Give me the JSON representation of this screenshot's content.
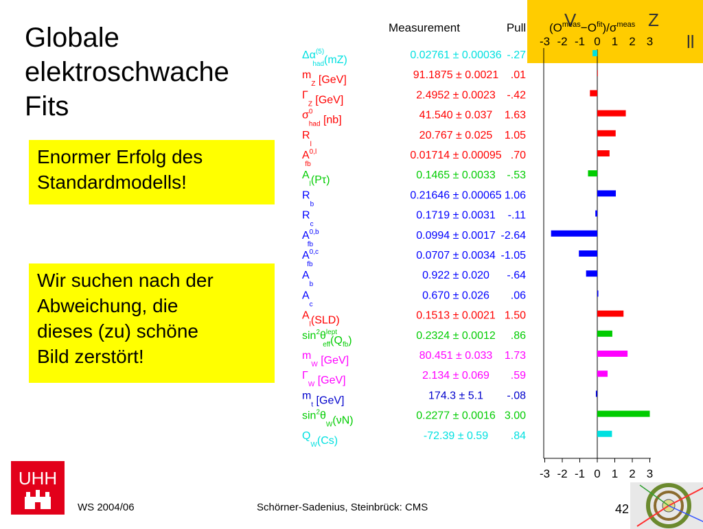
{
  "slide": {
    "title_lines": [
      "Globale",
      "elektroschwache",
      "Fits"
    ],
    "note1_lines": [
      "Enormer Erfolg des",
      "Standardmodells!"
    ],
    "note2_lines": [
      "Wir suchen nach der",
      "Abweichung, die",
      "dieses (zu) schöne",
      "Bild zerstört!"
    ],
    "corner_text": "V",
    "corner_text2": "Z",
    "corner_text3": "ll",
    "footer_left": "WS 2004/06",
    "footer_center": "Schörner-Sadenius, Steinbrück: CMS",
    "page_number": "42",
    "logo_text": "UHH",
    "colors": {
      "accent_yellow": "#ffff00",
      "corner_yellow": "#ffcc00",
      "logo_red": "#e2001a"
    }
  },
  "chart_data": {
    "type": "bar",
    "orientation": "horizontal",
    "header": {
      "measurement": "Measurement",
      "pull": "Pull",
      "axis_title": "(O^meas − O^fit)/σ^meas"
    },
    "xlim": [
      -3,
      3
    ],
    "xticks": [
      "-3",
      "-2",
      "-1",
      "0",
      "1",
      "2",
      "3"
    ],
    "rows": [
      {
        "label": "Δα(5)had(mZ)",
        "sup": "(5)",
        "sub": "had",
        "base": "Δα",
        "tail": "(mZ)",
        "measurement": "0.02761 ± 0.00036",
        "pull_text": "-.27",
        "pull": -0.27,
        "color": "#00e0e0"
      },
      {
        "label": "mZ [GeV]",
        "base": "m",
        "sub": "Z",
        "tail": " [GeV]",
        "measurement": "91.1875 ± 0.0021",
        "pull_text": ".01",
        "pull": 0.01,
        "color": "#ff0000"
      },
      {
        "label": "ΓZ [GeV]",
        "base": "Γ",
        "sub": "Z",
        "tail": " [GeV]",
        "measurement": "2.4952 ± 0.0023",
        "pull_text": "-.42",
        "pull": -0.42,
        "color": "#ff0000"
      },
      {
        "label": "σ0had [nb]",
        "base": "σ",
        "sup": "0",
        "sub": "had",
        "tail": " [nb]",
        "measurement": "41.540 ± 0.037",
        "pull_text": "1.63",
        "pull": 1.63,
        "color": "#ff0000"
      },
      {
        "label": "Rl",
        "base": "R",
        "sub": "l",
        "tail": "",
        "measurement": "20.767 ± 0.025",
        "pull_text": "1.05",
        "pull": 1.05,
        "color": "#ff0000"
      },
      {
        "label": "A0,lfb",
        "base": "A",
        "sup": "0,l",
        "sub": "fb",
        "tail": "",
        "measurement": "0.01714 ± 0.00095",
        "pull_text": ".70",
        "pull": 0.7,
        "color": "#ff0000"
      },
      {
        "label": "Al(Pτ)",
        "base": "A",
        "sub": "l",
        "tail": "(Pτ)",
        "measurement": "0.1465 ± 0.0033",
        "pull_text": "-.53",
        "pull": -0.53,
        "color": "#00cc00"
      },
      {
        "label": "Rb",
        "base": "R",
        "sub": "b",
        "tail": "",
        "measurement": "0.21646 ± 0.00065",
        "pull_text": "1.06",
        "pull": 1.06,
        "color": "#0000ff"
      },
      {
        "label": "Rc",
        "base": "R",
        "sub": "c",
        "tail": "",
        "measurement": "0.1719 ± 0.0031",
        "pull_text": "-.11",
        "pull": -0.11,
        "color": "#0000ff"
      },
      {
        "label": "A0,bfb",
        "base": "A",
        "sup": "0,b",
        "sub": "fb",
        "tail": "",
        "measurement": "0.0994 ± 0.0017",
        "pull_text": "-2.64",
        "pull": -2.64,
        "color": "#0000ff"
      },
      {
        "label": "A0,cfb",
        "base": "A",
        "sup": "0,c",
        "sub": "fb",
        "tail": "",
        "measurement": "0.0707 ± 0.0034",
        "pull_text": "-1.05",
        "pull": -1.05,
        "color": "#0000ff"
      },
      {
        "label": "Ab",
        "base": "A",
        "sub": "b",
        "tail": "",
        "measurement": "0.922 ± 0.020",
        "pull_text": "-.64",
        "pull": -0.64,
        "color": "#0000ff"
      },
      {
        "label": "Ac",
        "base": "A",
        "sub": "c",
        "tail": "",
        "measurement": "0.670 ± 0.026",
        "pull_text": ".06",
        "pull": 0.06,
        "color": "#0000ff"
      },
      {
        "label": "Al(SLD)",
        "base": "A",
        "sub": "l",
        "tail": "(SLD)",
        "measurement": "0.1513 ± 0.0021",
        "pull_text": "1.50",
        "pull": 1.5,
        "color": "#ff0000"
      },
      {
        "label": "sin2θlepteff(Qfb)",
        "base": "sin",
        "sup": "2",
        "tail": "θ",
        "sup2": "lept",
        "sub2": "eff",
        "tail2": "(Q",
        "sub3": "fb",
        "tail3": ")",
        "measurement": "0.2324 ± 0.0012",
        "pull_text": ".86",
        "pull": 0.86,
        "color": "#00cc00"
      },
      {
        "label": "mW [GeV]",
        "base": "m",
        "sub": "W",
        "tail": " [GeV]",
        "measurement": "80.451 ± 0.033",
        "pull_text": "1.73",
        "pull": 1.73,
        "color": "#ff00ff"
      },
      {
        "label": "ΓW [GeV]",
        "base": "Γ",
        "sub": "W",
        "tail": " [GeV]",
        "measurement": "2.134 ± 0.069",
        "pull_text": ".59",
        "pull": 0.59,
        "color": "#ff00ff"
      },
      {
        "label": "mt [GeV]",
        "base": "m",
        "sub": "t",
        "tail": " [GeV]",
        "measurement": "174.3 ± 5.1",
        "pull_text": "-.08",
        "pull": -0.08,
        "color": "#0000cc"
      },
      {
        "label": "sin2θW(νN)",
        "base": "sin",
        "sup": "2",
        "tail": "θ",
        "sub2": "W",
        "tail2": "(νN)",
        "measurement": "0.2277 ± 0.0016",
        "pull_text": "3.00",
        "pull": 3.0,
        "color": "#00cc00"
      },
      {
        "label": "QW(Cs)",
        "base": "Q",
        "sub": "W",
        "tail": "(Cs)",
        "measurement": "-72.39 ± 0.59",
        "pull_text": ".84",
        "pull": 0.84,
        "color": "#00e0e0"
      }
    ]
  }
}
